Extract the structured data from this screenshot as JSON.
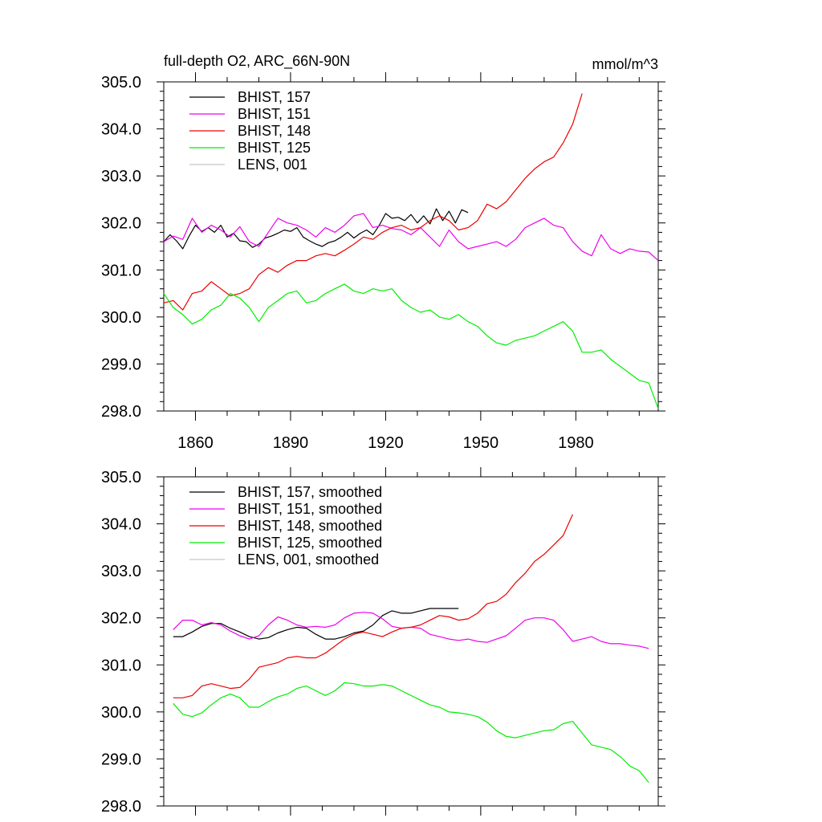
{
  "title": "full-depth O2, ARC_66N-90N",
  "units": "mmol/m^3",
  "colors": {
    "BHIST_157": "#000000",
    "BHIST_151": "#ee00ee",
    "BHIST_148": "#ee0000",
    "BHIST_125": "#00ee00",
    "LENS_001": "#c8c8c8"
  },
  "chart_data": [
    {
      "type": "line",
      "title": "full-depth O2, ARC_66N-90N",
      "units_label": "mmol/m^3",
      "xlim": [
        1850,
        2006
      ],
      "ylim": [
        298.0,
        305.0
      ],
      "xticks": [
        1860,
        1890,
        1920,
        1950,
        1980
      ],
      "xtick_labels": [
        "1860",
        "1890",
        "1920",
        "1950",
        "1980"
      ],
      "yticks": [
        298,
        299,
        300,
        301,
        302,
        303,
        304,
        305
      ],
      "ytick_labels": [
        "298.0",
        "299.0",
        "300.0",
        "301.0",
        "302.0",
        "303.0",
        "304.0",
        "305.0"
      ],
      "legend_position": "top-left",
      "series": [
        {
          "name": "BHIST, 157",
          "color_key": "BHIST_157",
          "x": [
            1850,
            1852,
            1854,
            1856,
            1858,
            1860,
            1862,
            1864,
            1866,
            1868,
            1870,
            1872,
            1874,
            1876,
            1878,
            1880,
            1882,
            1884,
            1886,
            1888,
            1890,
            1892,
            1894,
            1896,
            1898,
            1900,
            1902,
            1904,
            1906,
            1908,
            1910,
            1912,
            1914,
            1916,
            1918,
            1920,
            1922,
            1924,
            1926,
            1928,
            1930,
            1932,
            1934,
            1936,
            1938,
            1940,
            1942,
            1944,
            1946
          ],
          "y": [
            301.6,
            301.75,
            301.62,
            301.45,
            301.72,
            301.95,
            301.82,
            301.9,
            301.8,
            301.95,
            301.7,
            301.78,
            301.62,
            301.6,
            301.48,
            301.55,
            301.68,
            301.72,
            301.78,
            301.85,
            301.82,
            301.9,
            301.7,
            301.62,
            301.55,
            301.5,
            301.58,
            301.62,
            301.7,
            301.8,
            301.68,
            301.78,
            301.85,
            301.75,
            301.95,
            302.2,
            302.1,
            302.12,
            302.05,
            302.18,
            302.0,
            302.15,
            301.98,
            302.3,
            302.05,
            302.25,
            302.0,
            302.28,
            302.22
          ]
        },
        {
          "name": "BHIST, 151",
          "color_key": "BHIST_151",
          "x": [
            1850,
            1853,
            1856,
            1859,
            1862,
            1865,
            1868,
            1871,
            1874,
            1877,
            1880,
            1883,
            1886,
            1889,
            1892,
            1895,
            1898,
            1901,
            1904,
            1907,
            1910,
            1913,
            1916,
            1919,
            1922,
            1925,
            1928,
            1931,
            1934,
            1937,
            1940,
            1943,
            1946,
            1949,
            1952,
            1955,
            1958,
            1961,
            1964,
            1967,
            1970,
            1973,
            1976,
            1979,
            1982,
            1985,
            1988,
            1991,
            1994,
            1997,
            2000,
            2003,
            2006
          ],
          "y": [
            301.6,
            301.72,
            301.65,
            302.1,
            301.8,
            301.95,
            301.85,
            301.7,
            301.92,
            301.6,
            301.5,
            301.8,
            302.1,
            302.0,
            301.95,
            301.85,
            301.7,
            301.9,
            301.8,
            301.95,
            302.15,
            302.2,
            301.9,
            301.95,
            301.88,
            301.85,
            301.75,
            301.9,
            301.7,
            301.5,
            301.85,
            301.6,
            301.45,
            301.5,
            301.55,
            301.6,
            301.5,
            301.65,
            301.9,
            302.0,
            302.1,
            301.95,
            301.9,
            301.6,
            301.4,
            301.3,
            301.75,
            301.45,
            301.35,
            301.45,
            301.4,
            301.38,
            301.2
          ]
        },
        {
          "name": "BHIST, 148",
          "color_key": "BHIST_148",
          "x": [
            1850,
            1853,
            1856,
            1859,
            1862,
            1865,
            1868,
            1871,
            1874,
            1877,
            1880,
            1883,
            1886,
            1889,
            1892,
            1895,
            1898,
            1901,
            1904,
            1907,
            1910,
            1913,
            1916,
            1919,
            1922,
            1925,
            1928,
            1931,
            1934,
            1937,
            1940,
            1943,
            1946,
            1949,
            1952,
            1955,
            1958,
            1961,
            1964,
            1967,
            1970,
            1973,
            1976,
            1979,
            1982
          ],
          "y": [
            300.3,
            300.35,
            300.15,
            300.5,
            300.55,
            300.75,
            300.6,
            300.45,
            300.5,
            300.6,
            300.9,
            301.05,
            300.95,
            301.1,
            301.2,
            301.2,
            301.3,
            301.35,
            301.3,
            301.42,
            301.55,
            301.7,
            301.65,
            301.8,
            301.9,
            301.95,
            301.85,
            301.9,
            302.05,
            302.15,
            302.05,
            301.85,
            301.9,
            302.05,
            302.4,
            302.3,
            302.45,
            302.7,
            302.95,
            303.15,
            303.3,
            303.4,
            303.7,
            304.1,
            304.75
          ]
        },
        {
          "name": "BHIST, 125",
          "color_key": "BHIST_125",
          "x": [
            1850,
            1853,
            1856,
            1859,
            1862,
            1865,
            1868,
            1871,
            1874,
            1877,
            1880,
            1883,
            1886,
            1889,
            1892,
            1895,
            1898,
            1901,
            1904,
            1907,
            1910,
            1913,
            1916,
            1919,
            1922,
            1925,
            1928,
            1931,
            1934,
            1937,
            1940,
            1943,
            1946,
            1949,
            1952,
            1955,
            1958,
            1961,
            1964,
            1967,
            1970,
            1973,
            1976,
            1979,
            1982,
            1985,
            1988,
            1991,
            1994,
            1997,
            2000,
            2003,
            2006
          ],
          "y": [
            300.5,
            300.2,
            300.05,
            299.85,
            299.95,
            300.15,
            300.25,
            300.5,
            300.4,
            300.2,
            299.9,
            300.2,
            300.35,
            300.5,
            300.55,
            300.3,
            300.35,
            300.5,
            300.6,
            300.7,
            300.55,
            300.5,
            300.6,
            300.55,
            300.6,
            300.35,
            300.2,
            300.1,
            300.15,
            300.0,
            299.95,
            300.05,
            299.9,
            299.8,
            299.6,
            299.45,
            299.4,
            299.5,
            299.55,
            299.6,
            299.7,
            299.8,
            299.9,
            299.7,
            299.25,
            299.25,
            299.3,
            299.1,
            298.95,
            298.8,
            298.65,
            298.6,
            298.05
          ]
        },
        {
          "name": "LENS, 001",
          "color_key": "LENS_001",
          "x": [],
          "y": []
        }
      ]
    },
    {
      "type": "line",
      "xlim": [
        1850,
        2006
      ],
      "ylim": [
        298.0,
        305.0
      ],
      "xticks": [
        1860,
        1890,
        1920,
        1950,
        1980
      ],
      "yticks": [
        298,
        299,
        300,
        301,
        302,
        303,
        304,
        305
      ],
      "ytick_labels": [
        "298.0",
        "299.0",
        "300.0",
        "301.0",
        "302.0",
        "303.0",
        "304.0",
        "305.0"
      ],
      "legend_position": "top-left",
      "series": [
        {
          "name": "BHIST, 157, smoothed",
          "color_key": "BHIST_157",
          "x": [
            1853,
            1856,
            1859,
            1862,
            1865,
            1868,
            1871,
            1874,
            1877,
            1880,
            1883,
            1886,
            1889,
            1892,
            1895,
            1898,
            1901,
            1904,
            1907,
            1910,
            1913,
            1916,
            1919,
            1922,
            1925,
            1928,
            1931,
            1934,
            1937,
            1940,
            1943
          ],
          "y": [
            301.6,
            301.6,
            301.7,
            301.82,
            301.88,
            301.88,
            301.78,
            301.7,
            301.6,
            301.55,
            301.58,
            301.68,
            301.75,
            301.8,
            301.78,
            301.65,
            301.55,
            301.55,
            301.6,
            301.68,
            301.72,
            301.85,
            302.05,
            302.15,
            302.1,
            302.1,
            302.15,
            302.2,
            302.2,
            302.2,
            302.2
          ]
        },
        {
          "name": "BHIST, 151, smoothed",
          "color_key": "BHIST_151",
          "x": [
            1853,
            1856,
            1859,
            1862,
            1865,
            1868,
            1871,
            1874,
            1877,
            1880,
            1883,
            1886,
            1889,
            1892,
            1895,
            1898,
            1901,
            1904,
            1907,
            1910,
            1913,
            1916,
            1919,
            1922,
            1925,
            1928,
            1931,
            1934,
            1937,
            1940,
            1943,
            1946,
            1949,
            1952,
            1955,
            1958,
            1961,
            1964,
            1967,
            1970,
            1973,
            1976,
            1979,
            1982,
            1985,
            1988,
            1991,
            1994,
            1997,
            2000,
            2003
          ],
          "y": [
            301.75,
            301.95,
            301.95,
            301.85,
            301.9,
            301.85,
            301.72,
            301.62,
            301.55,
            301.62,
            301.85,
            302.02,
            301.95,
            301.85,
            301.8,
            301.82,
            301.8,
            301.85,
            302.0,
            302.1,
            302.12,
            302.1,
            301.98,
            301.82,
            301.78,
            301.8,
            301.78,
            301.65,
            301.6,
            301.55,
            301.52,
            301.55,
            301.5,
            301.48,
            301.55,
            301.62,
            301.78,
            301.95,
            302.0,
            302.0,
            301.95,
            301.75,
            301.5,
            301.55,
            301.6,
            301.5,
            301.45,
            301.45,
            301.42,
            301.4,
            301.35
          ]
        },
        {
          "name": "BHIST, 148, smoothed",
          "color_key": "BHIST_148",
          "x": [
            1853,
            1856,
            1859,
            1862,
            1865,
            1868,
            1871,
            1874,
            1877,
            1880,
            1883,
            1886,
            1889,
            1892,
            1895,
            1898,
            1901,
            1904,
            1907,
            1910,
            1913,
            1916,
            1919,
            1922,
            1925,
            1928,
            1931,
            1934,
            1937,
            1940,
            1943,
            1946,
            1949,
            1952,
            1955,
            1958,
            1961,
            1964,
            1967,
            1970,
            1973,
            1976,
            1979
          ],
          "y": [
            300.3,
            300.3,
            300.35,
            300.55,
            300.6,
            300.55,
            300.5,
            300.52,
            300.7,
            300.95,
            301.0,
            301.05,
            301.15,
            301.18,
            301.15,
            301.15,
            301.25,
            301.4,
            301.55,
            301.65,
            301.7,
            301.65,
            301.6,
            301.7,
            301.78,
            301.8,
            301.85,
            301.95,
            302.05,
            302.02,
            301.95,
            301.98,
            302.1,
            302.3,
            302.35,
            302.5,
            302.75,
            302.95,
            303.2,
            303.35,
            303.55,
            303.75,
            304.2
          ]
        },
        {
          "name": "BHIST, 125, smoothed",
          "color_key": "BHIST_125",
          "x": [
            1853,
            1856,
            1859,
            1862,
            1865,
            1868,
            1871,
            1874,
            1877,
            1880,
            1883,
            1886,
            1889,
            1892,
            1895,
            1898,
            1901,
            1904,
            1907,
            1910,
            1913,
            1916,
            1919,
            1922,
            1925,
            1928,
            1931,
            1934,
            1937,
            1940,
            1943,
            1946,
            1949,
            1952,
            1955,
            1958,
            1961,
            1964,
            1967,
            1970,
            1973,
            1976,
            1979,
            1982,
            1985,
            1988,
            1991,
            1994,
            1997,
            2000,
            2003
          ],
          "y": [
            300.18,
            299.95,
            299.9,
            299.98,
            300.15,
            300.3,
            300.38,
            300.3,
            300.1,
            300.1,
            300.22,
            300.32,
            300.38,
            300.5,
            300.55,
            300.45,
            300.35,
            300.45,
            300.62,
            300.6,
            300.55,
            300.55,
            300.58,
            300.55,
            300.45,
            300.35,
            300.25,
            300.15,
            300.1,
            300.0,
            299.98,
            299.95,
            299.9,
            299.78,
            299.6,
            299.48,
            299.45,
            299.5,
            299.55,
            299.6,
            299.62,
            299.75,
            299.8,
            299.55,
            299.3,
            299.25,
            299.2,
            299.05,
            298.85,
            298.75,
            298.5
          ]
        },
        {
          "name": "LENS, 001, smoothed",
          "color_key": "LENS_001",
          "x": [],
          "y": []
        }
      ]
    }
  ]
}
